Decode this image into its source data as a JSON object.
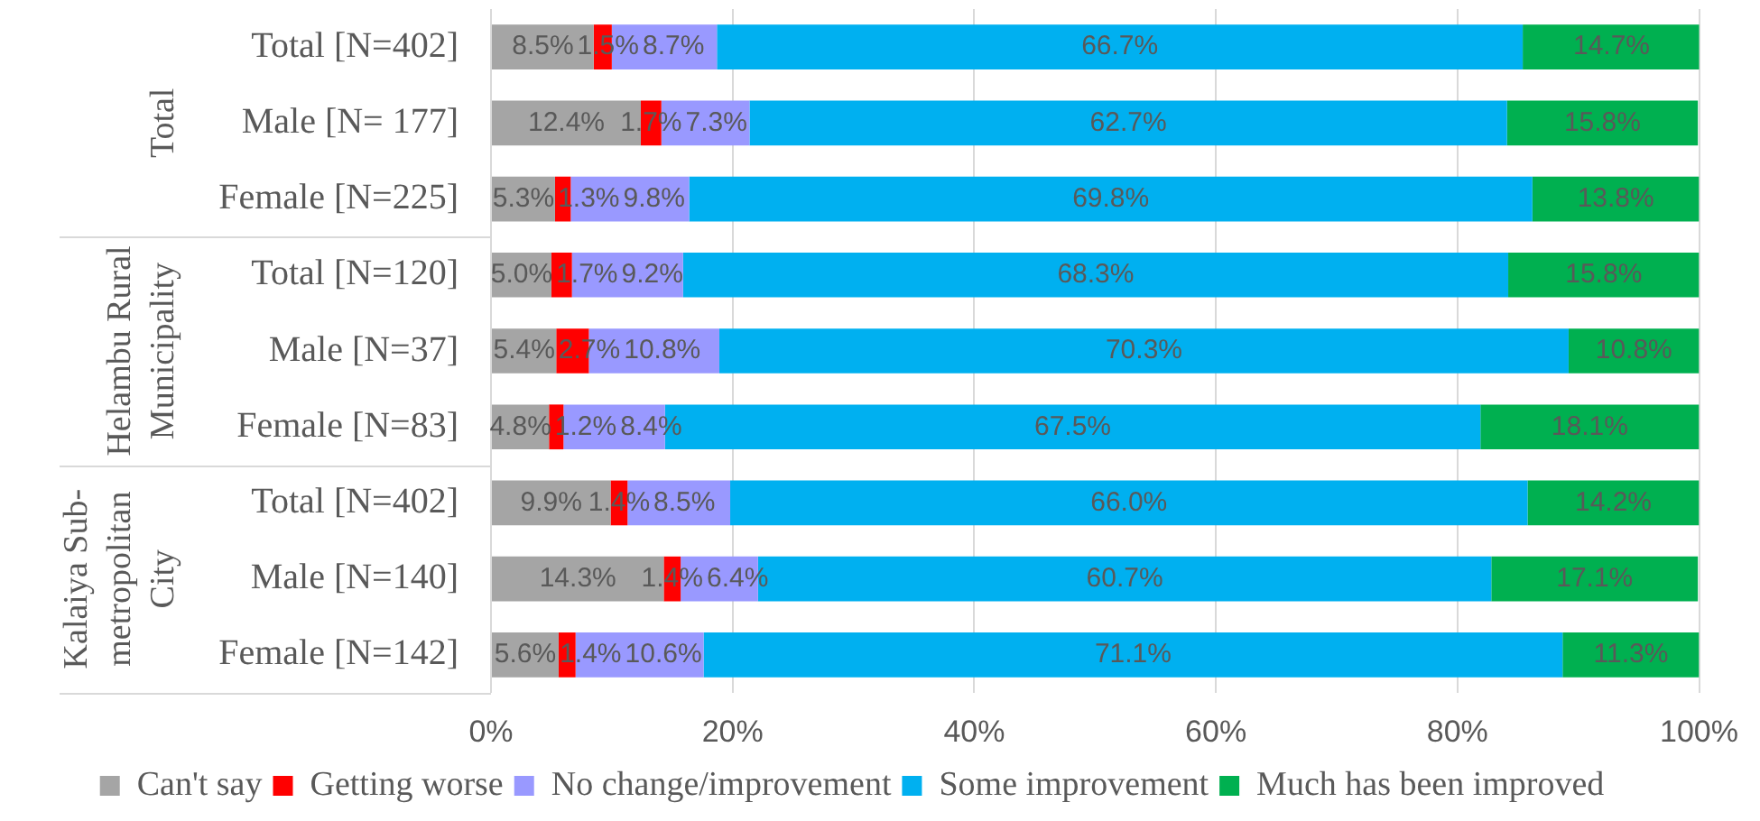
{
  "chart_data": {
    "type": "bar",
    "orientation": "horizontal",
    "stacked": true,
    "categories": [
      "Total [N=402]",
      "Male [N= 177]",
      "Female [N=225]",
      "Total [N=120]",
      "Male [N=37]",
      "Female [N=83]",
      "Total [N=402]",
      "Male [N=140]",
      "Female [N=142]"
    ],
    "annotations": [
      "Total",
      "Helambu Rural Municipality",
      "Kalaiya Sub-metropolitan City"
    ],
    "series": [
      {
        "name": "Can't say",
        "color": "#a5a5a5",
        "values": [
          8.5,
          12.4,
          5.3,
          5.0,
          5.4,
          4.8,
          9.9,
          14.3,
          5.6
        ],
        "value_labels": [
          "8.5%",
          "12.4%",
          "5.3%",
          "5.0%",
          "5.4%",
          "4.8%",
          "9.9%",
          "14.3%",
          "5.6%"
        ]
      },
      {
        "name": "Getting worse",
        "color": "#ff0000",
        "values": [
          1.5,
          1.7,
          1.3,
          1.7,
          2.7,
          1.2,
          1.4,
          1.4,
          1.4
        ],
        "value_labels": [
          "1.5%",
          "1.7%",
          "1.3%",
          "1.7%",
          "2.7%",
          "1.2%",
          "1.4%",
          "1.4%",
          "1.4%"
        ]
      },
      {
        "name": "No change/improvement",
        "color": "#9999ff",
        "values": [
          8.7,
          7.3,
          9.8,
          9.2,
          10.8,
          8.4,
          8.5,
          6.4,
          10.6
        ],
        "value_labels": [
          "8.7%",
          "7.3%",
          "9.8%",
          "9.2%",
          "10.8%",
          "8.4%",
          "8.5%",
          "6.4%",
          "10.6%"
        ]
      },
      {
        "name": "Some improvement",
        "color": "#00b0f0",
        "values": [
          66.7,
          62.7,
          69.8,
          68.3,
          70.3,
          67.5,
          66.0,
          60.7,
          71.1
        ],
        "value_labels": [
          "66.7%",
          "62.7%",
          "69.8%",
          "68.3%",
          "70.3%",
          "67.5%",
          "66.0%",
          "60.7%",
          "71.1%"
        ]
      },
      {
        "name": "Much has been improved",
        "color": "#00b050",
        "values": [
          14.7,
          15.8,
          13.8,
          15.8,
          10.8,
          18.1,
          14.2,
          17.1,
          11.3
        ],
        "value_labels": [
          "14.7%",
          "15.8%",
          "13.8%",
          "15.8%",
          "10.8%",
          "18.1%",
          "14.2%",
          "17.1%",
          "11.3%"
        ]
      }
    ],
    "xlim": [
      0,
      100
    ],
    "xticks": [
      {
        "value": 0,
        "label": "0%"
      },
      {
        "value": 20,
        "label": "20%"
      },
      {
        "value": 40,
        "label": "40%"
      },
      {
        "value": 60,
        "label": "60%"
      },
      {
        "value": 80,
        "label": "80%"
      },
      {
        "value": 100,
        "label": "100%"
      }
    ],
    "grid": "x",
    "legend": "bottom"
  }
}
